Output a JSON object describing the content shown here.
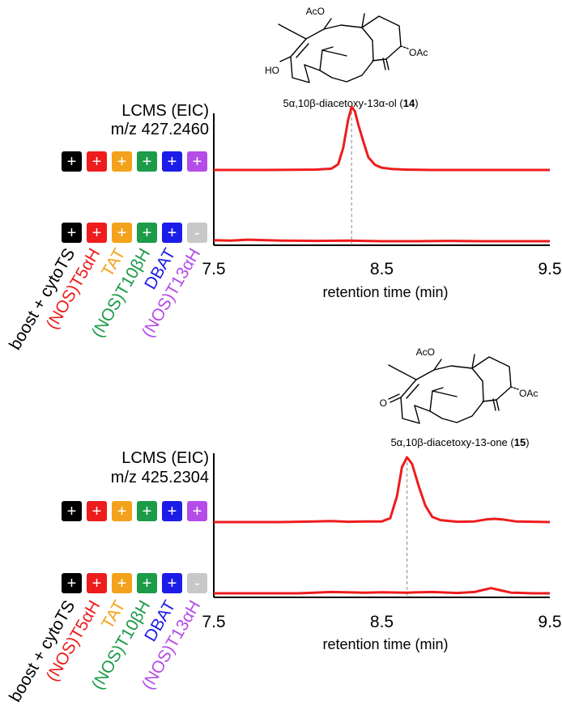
{
  "colors": {
    "trace": "#ee1c1c",
    "black": "#000000",
    "red": "#ee1c1c",
    "orange": "#f4a21c",
    "green": "#1c9b48",
    "blue": "#1c1ce8",
    "purple": "#b54ce8",
    "gray": "#c8c8c8"
  },
  "genes": [
    {
      "label": "boost + cytoTS",
      "color": "#000000"
    },
    {
      "label": "(NOS)T5αH",
      "color": "#ee1c1c"
    },
    {
      "label": "TAT",
      "color": "#f4a21c"
    },
    {
      "label": "(NOS)T10βH",
      "color": "#1c9b48"
    },
    {
      "label": "DBAT",
      "color": "#1c1ce8"
    },
    {
      "label": "(NOS)T13αH",
      "color": "#b54ce8"
    }
  ],
  "chart_data": [
    {
      "type": "line",
      "title": "LCMS (EIC)",
      "subtitle": "m/z 427.2460",
      "xlabel": "retention time (min)",
      "xlim": [
        7.5,
        9.5
      ],
      "xticks": [
        "7.5",
        "8.5",
        "9.5"
      ],
      "compound": {
        "name": "5α,10β-diacetoxy-13α-ol",
        "number": "14",
        "retention_time": 8.32
      },
      "series": [
        {
          "strain": [
            "+",
            "+",
            "+",
            "+",
            "+",
            "+"
          ],
          "x": [
            7.5,
            7.8,
            8.1,
            8.2,
            8.24,
            8.27,
            8.3,
            8.32,
            8.34,
            8.36,
            8.39,
            8.42,
            8.46,
            8.5,
            8.56,
            8.65,
            8.8,
            9.0,
            9.2,
            9.5
          ],
          "y": [
            0,
            0,
            0.005,
            0.02,
            0.09,
            0.35,
            0.8,
            1.0,
            0.93,
            0.72,
            0.45,
            0.2,
            0.08,
            0.035,
            0.015,
            0.005,
            0,
            0,
            0,
            0
          ]
        },
        {
          "strain": [
            "+",
            "+",
            "+",
            "+",
            "+",
            "-"
          ],
          "x": [
            7.5,
            7.6,
            7.7,
            7.9,
            8.1,
            8.3,
            8.5,
            8.7,
            8.9,
            9.1,
            9.3,
            9.5
          ],
          "y": [
            0.015,
            0.01,
            0.025,
            0.01,
            0.005,
            0.01,
            0,
            0,
            0.005,
            0,
            0,
            0
          ]
        }
      ]
    },
    {
      "type": "line",
      "title": "LCMS (EIC)",
      "subtitle": "m/z 425.2304",
      "xlabel": "retention time (min)",
      "xlim": [
        7.5,
        9.5
      ],
      "xticks": [
        "7.5",
        "8.5",
        "9.5"
      ],
      "compound": {
        "name": "5α,10β-diacetoxy-13-one",
        "number": "15",
        "retention_time": 8.65
      },
      "series": [
        {
          "strain": [
            "+",
            "+",
            "+",
            "+",
            "+",
            "+"
          ],
          "x": [
            7.5,
            7.9,
            8.1,
            8.2,
            8.3,
            8.4,
            8.5,
            8.55,
            8.59,
            8.62,
            8.65,
            8.68,
            8.72,
            8.76,
            8.8,
            8.85,
            8.95,
            9.05,
            9.12,
            9.17,
            9.22,
            9.3,
            9.5
          ],
          "y": [
            0,
            0,
            0.01,
            0.015,
            0.005,
            0.01,
            0.01,
            0.06,
            0.4,
            0.85,
            1.0,
            0.9,
            0.55,
            0.25,
            0.08,
            0.03,
            0.005,
            0.01,
            0.04,
            0.05,
            0.04,
            0.01,
            0
          ]
        },
        {
          "strain": [
            "+",
            "+",
            "+",
            "+",
            "+",
            "-"
          ],
          "x": [
            7.5,
            8.0,
            8.2,
            8.4,
            8.5,
            8.65,
            8.8,
            8.95,
            9.05,
            9.1,
            9.15,
            9.2,
            9.27,
            9.4,
            9.5
          ],
          "y": [
            0,
            0,
            0.02,
            0.01,
            0.015,
            0.01,
            0.02,
            0.005,
            0.02,
            0.05,
            0.08,
            0.05,
            0.01,
            0,
            0
          ]
        }
      ]
    }
  ],
  "structure_labels": {
    "acetoxy_top": "AcO",
    "acetoxy_right": "OAc",
    "hydroxyl": "HO",
    "ketone": "O"
  }
}
